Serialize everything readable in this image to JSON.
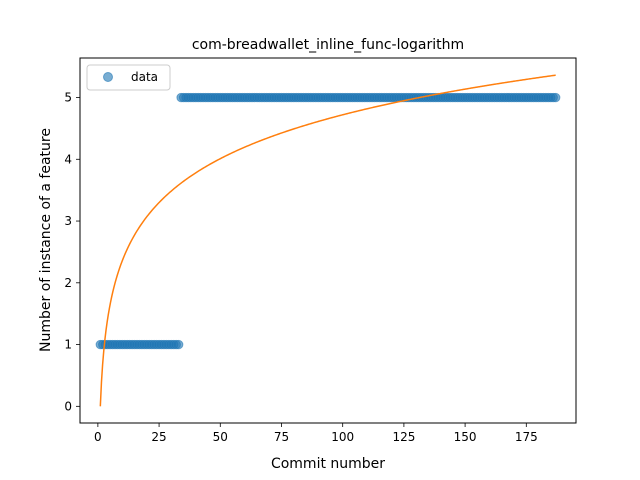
{
  "chart_data": {
    "type": "scatter",
    "title": "com-breadwallet_inline_func-logarithm",
    "xlabel": "Commit number",
    "ylabel": "Number of instance of a feature",
    "xlim": [
      -7.3,
      195.3
    ],
    "ylim": [
      -0.27,
      5.64
    ],
    "xticks": [
      0,
      25,
      50,
      75,
      100,
      125,
      150,
      175
    ],
    "yticks": [
      0,
      1,
      2,
      3,
      4,
      5
    ],
    "legend": {
      "position": "top-left",
      "entries": [
        "data"
      ]
    },
    "grid": false,
    "series": [
      {
        "name": "data",
        "kind": "scatter",
        "color": "#1f77b4",
        "segments": [
          {
            "x_start": 1,
            "x_end": 33,
            "y": 1
          },
          {
            "x_start": 34,
            "x_end": 187,
            "y": 5
          }
        ]
      },
      {
        "kind": "line",
        "color": "#ff7f0e",
        "fit": {
          "model": "a*ln(x)",
          "a": 1.025,
          "x_start": 1,
          "x_end": 187
        }
      }
    ]
  }
}
